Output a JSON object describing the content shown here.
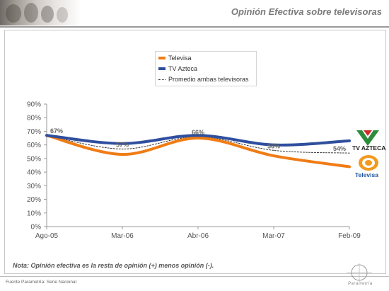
{
  "header": {
    "title": "Opinión Efectiva sobre televisoras"
  },
  "chart_data": {
    "type": "line",
    "x": [
      "Ago-05",
      "Mar-06",
      "Abr-06",
      "Mar-07",
      "Feb-09"
    ],
    "y_ticks": [
      "0%",
      "10%",
      "20%",
      "30%",
      "40%",
      "50%",
      "60%",
      "70%",
      "80%",
      "90%"
    ],
    "ylim": [
      0,
      90
    ],
    "series": [
      {
        "name": "Televisa",
        "values": [
          67,
          53,
          65,
          52,
          44
        ],
        "color": "#f07c15",
        "style": "solid"
      },
      {
        "name": "TV Azteca",
        "values": [
          67,
          61,
          67,
          60,
          63
        ],
        "color": "#2f4f9e",
        "style": "solid"
      },
      {
        "name": "Promedio ambas televisoras",
        "values": [
          67,
          57,
          66,
          56,
          54
        ],
        "color": "#333333",
        "style": "dotted"
      }
    ],
    "annotations": [
      {
        "x_index": 0,
        "value": 67,
        "label": "67%"
      },
      {
        "x_index": 1,
        "value": 57,
        "label": "57%"
      },
      {
        "x_index": 2,
        "value": 66,
        "label": "66%"
      },
      {
        "x_index": 3,
        "value": 56,
        "label": "56%"
      },
      {
        "x_index": 4,
        "value": 54,
        "label": "54%"
      }
    ],
    "grid": false,
    "legend_placement": "top-center"
  },
  "logos": {
    "azteca": "TV AZTECA",
    "televisa": "Televisa"
  },
  "note": "Nota: Opinión efectiva es la resta de opinión (+) menos opinión (-).",
  "footer": {
    "source": "Fuente Parametría: Serie Nacional",
    "brand": "Parametría"
  }
}
